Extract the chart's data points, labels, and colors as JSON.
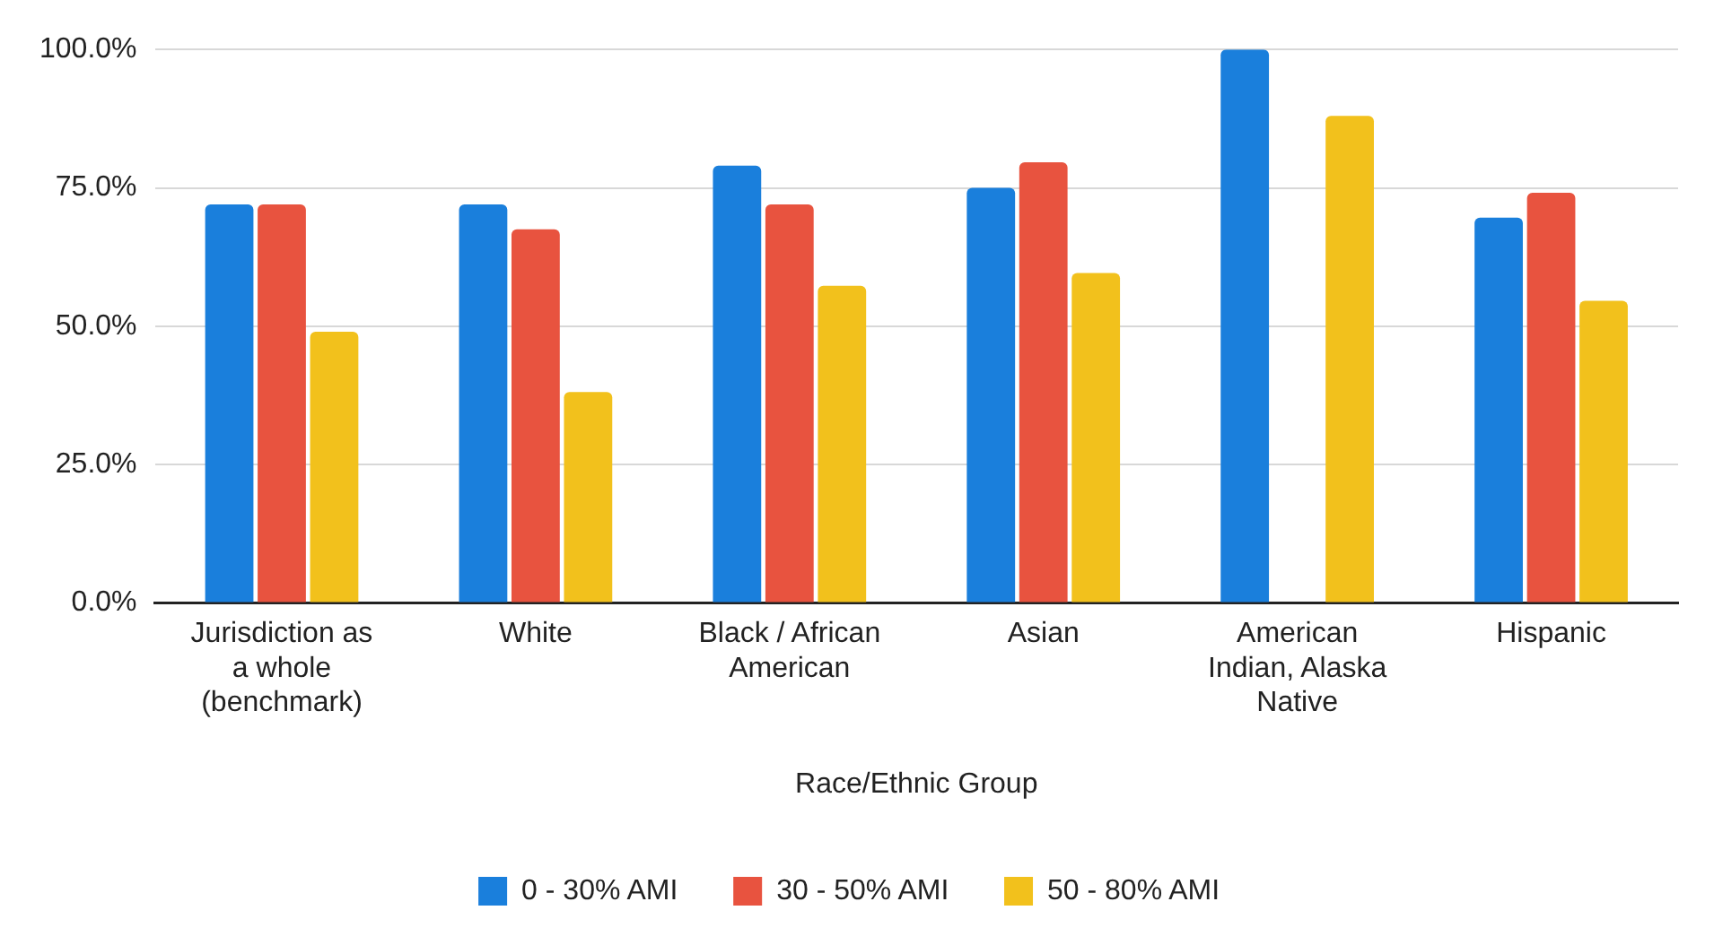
{
  "chart_data": {
    "type": "bar",
    "xlabel": "Race/Ethnic Group",
    "categories": [
      "Jurisdiction as a whole (benchmark)",
      "White",
      "Black / African American",
      "Asian",
      "American Indian, Alaska Native",
      "Hispanic"
    ],
    "series": [
      {
        "name": "0 - 30% AMI",
        "color": "#1a7fdc",
        "values": [
          72.0,
          72.0,
          79.0,
          75.0,
          100.0,
          69.6
        ]
      },
      {
        "name": "30 - 50% AMI",
        "color": "#e8533f",
        "values": [
          72.0,
          67.5,
          72.0,
          79.6,
          0,
          74.1
        ]
      },
      {
        "name": "50 - 80% AMI",
        "color": "#f2c11c",
        "values": [
          49.0,
          38.1,
          57.3,
          59.6,
          88.0,
          54.6
        ]
      }
    ],
    "ylim": [
      0,
      100
    ],
    "yticks": [
      {
        "value": 0,
        "label": "0.0%"
      },
      {
        "value": 25,
        "label": "25.0%"
      },
      {
        "value": 50,
        "label": "50.0%"
      },
      {
        "value": 75,
        "label": "75.0%"
      },
      {
        "value": 100,
        "label": "100.0%"
      }
    ],
    "grid": "y",
    "legend": "bottom"
  }
}
